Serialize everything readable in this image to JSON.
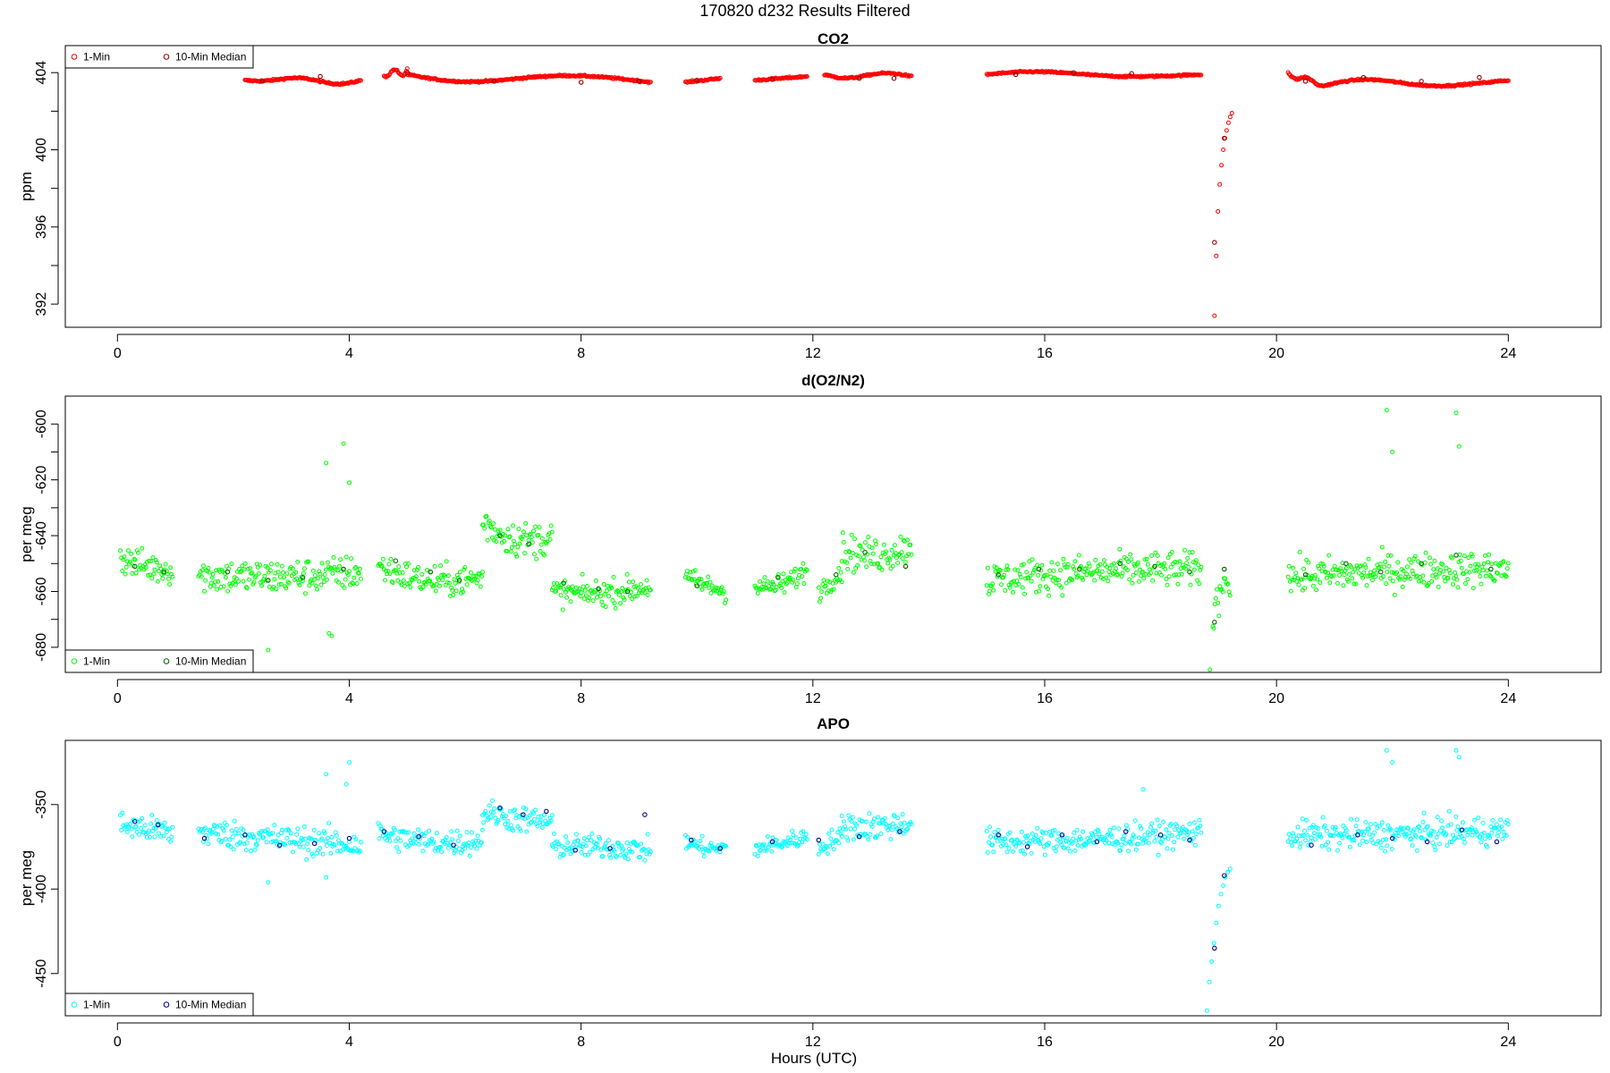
{
  "page": {
    "title": "170820   d232   Results Filtered",
    "x_label": "Hours (UTC)"
  },
  "chart_data": [
    {
      "type": "scatter",
      "title": "CO2",
      "ylabel": "ppm",
      "xlabel": "Hours (UTC)",
      "xlim": [
        -0.9,
        25.6
      ],
      "ylim": [
        390.8,
        405.4
      ],
      "x_ticks": [
        0,
        4,
        8,
        12,
        16,
        20,
        24
      ],
      "y_ticks": [
        392,
        396,
        400,
        404
      ],
      "legend_position": "top-left",
      "grid": false,
      "series": [
        {
          "name": "1-Min",
          "color": "#ff0000",
          "role": "1min",
          "segments": [
            [
              2.2,
              4.2,
              403.6,
              403.6,
              403.75,
              403.25
            ],
            [
              4.6,
              5.0,
              403.8,
              404.2,
              404.25,
              403.5
            ],
            [
              5.0,
              9.2,
              403.9,
              403.5,
              403.3,
              403.55
            ],
            [
              9.8,
              10.4,
              403.5,
              403.7,
              403.6,
              403.6
            ],
            [
              11.0,
              11.9,
              403.6,
              403.8,
              403.7,
              403.7
            ],
            [
              12.2,
              13.7,
              403.9,
              403.8,
              403.6,
              403.8
            ],
            [
              15.0,
              18.7,
              403.9,
              403.9,
              404.1,
              404.0
            ],
            [
              20.2,
              20.8,
              404.0,
              403.3,
              403.5,
              403.3
            ],
            [
              20.8,
              24.0,
              403.3,
              403.6,
              403.8,
              403.7
            ]
          ],
          "spike": {
            "x": [
              18.93,
              18.96,
              18.99,
              19.02,
              19.05,
              19.08,
              19.11,
              19.14,
              19.17,
              19.2,
              19.23
            ],
            "y": [
              391.4,
              394.5,
              396.8,
              398.2,
              399.2,
              400.0,
              400.6,
              401.0,
              401.4,
              401.7,
              401.9
            ]
          }
        },
        {
          "name": "10-Min Median",
          "color": "#8b0000",
          "role": "median",
          "x": [
            2.5,
            3.5,
            5.0,
            6.5,
            8.0,
            9.0,
            10.0,
            11.3,
            12.8,
            13.4,
            15.5,
            16.5,
            17.5,
            18.93,
            19.1,
            20.5,
            21.5,
            22.5,
            23.5
          ],
          "y": [
            403.55,
            403.8,
            404.0,
            403.55,
            403.5,
            403.55,
            403.6,
            403.65,
            403.7,
            403.7,
            403.9,
            404.0,
            403.95,
            395.2,
            400.6,
            403.55,
            403.75,
            403.55,
            403.75
          ]
        }
      ]
    },
    {
      "type": "scatter",
      "title": "d(O2/N2)",
      "ylabel": "per meg",
      "xlabel": "Hours (UTC)",
      "xlim": [
        -0.9,
        25.6
      ],
      "ylim": [
        -689,
        -590
      ],
      "x_ticks": [
        0,
        4,
        8,
        12,
        16,
        20,
        24
      ],
      "y_ticks": [
        -680,
        -660,
        -640,
        -620,
        -600
      ],
      "legend_position": "bottom-left",
      "grid": false,
      "series": [
        {
          "name": "1-Min",
          "color": "#00ff00",
          "role": "1min",
          "segments": [
            [
              0.05,
              0.95,
              -648,
              -652,
              -652,
              7
            ],
            [
              1.4,
              4.2,
              -654,
              -653,
              -656,
              8
            ],
            [
              4.5,
              6.3,
              -651,
              -655,
              -659,
              7
            ],
            [
              6.3,
              7.5,
              -635,
              -640,
              -645,
              8
            ],
            [
              7.5,
              9.2,
              -660,
              -658,
              -662,
              6
            ],
            [
              9.8,
              10.5,
              -655,
              -660,
              -658,
              5
            ],
            [
              11.0,
              11.9,
              -658,
              -652,
              -660,
              5
            ],
            [
              12.1,
              12.5,
              -660,
              -653,
              -656,
              5
            ],
            [
              12.5,
              13.7,
              -645,
              -643,
              -650,
              8
            ],
            [
              15.0,
              18.7,
              -656,
              -652,
              -652,
              8
            ],
            [
              18.9,
              19.2,
              -672,
              -656,
              -652,
              8
            ],
            [
              20.2,
              24.0,
              -655,
              -652,
              -652,
              8
            ]
          ],
          "outliers": {
            "x": [
              3.9,
              4.0,
              3.6,
              3.7,
              21.9,
              22.0,
              23.1,
              23.15,
              2.6,
              3.65,
              18.85
            ],
            "y": [
              -607,
              -621,
              -614,
              -676,
              -595,
              -610,
              -596,
              -608,
              -681,
              -675,
              -688
            ]
          }
        },
        {
          "name": "10-Min Median",
          "color": "#006400",
          "role": "median",
          "x": [
            0.3,
            0.8,
            1.9,
            2.6,
            3.2,
            3.9,
            4.8,
            5.4,
            5.9,
            6.6,
            7.1,
            7.7,
            8.3,
            8.8,
            10.0,
            11.4,
            12.4,
            12.9,
            13.6,
            15.2,
            15.9,
            16.6,
            17.3,
            17.9,
            18.5,
            18.93,
            19.1,
            20.5,
            21.2,
            21.8,
            22.5,
            23.1,
            23.7
          ],
          "y": [
            -651,
            -653,
            -653,
            -656,
            -655,
            -652,
            -649,
            -653,
            -656,
            -640,
            -643,
            -657,
            -659,
            -660,
            -658,
            -655,
            -654,
            -646,
            -651,
            -654,
            -652,
            -652,
            -650,
            -651,
            -653,
            -671,
            -652,
            -654,
            -650,
            -653,
            -650,
            -647,
            -652
          ]
        }
      ]
    },
    {
      "type": "scatter",
      "title": "APO",
      "ylabel": "per meg",
      "xlabel": "Hours (UTC)",
      "xlim": [
        -0.9,
        25.6
      ],
      "ylim": [
        -475,
        -312
      ],
      "x_ticks": [
        0,
        4,
        8,
        12,
        16,
        20,
        24
      ],
      "y_ticks": [
        -450,
        -400,
        -350
      ],
      "legend_position": "bottom-left",
      "grid": false,
      "series": [
        {
          "name": "1-Min",
          "color": "#00ffff",
          "role": "1min",
          "segments": [
            [
              0.05,
              0.95,
              -362,
              -367,
              -364,
              10
            ],
            [
              1.4,
              4.2,
              -366,
              -374,
              -371,
              11
            ],
            [
              4.5,
              6.3,
              -367,
              -371,
              -375,
              10
            ],
            [
              6.3,
              7.5,
              -354,
              -360,
              -360,
              10
            ],
            [
              7.5,
              9.2,
              -375,
              -377,
              -374,
              9
            ],
            [
              9.8,
              10.5,
              -372,
              -376,
              -377,
              7
            ],
            [
              11.0,
              11.9,
              -376,
              -369,
              -373,
              7
            ],
            [
              12.1,
              12.5,
              -376,
              -370,
              -370,
              8
            ],
            [
              12.5,
              13.7,
              -362,
              -360,
              -365,
              11
            ],
            [
              15.0,
              18.7,
              -372,
              -366,
              -372,
              10
            ]
          ],
          "spike": {
            "x": [
              18.8,
              18.84,
              18.88,
              18.92,
              18.96,
              19.0,
              19.04,
              19.08,
              19.12,
              19.16,
              19.2
            ],
            "y": [
              -472,
              -455,
              -443,
              -432,
              -420,
              -410,
              -403,
              -398,
              -393,
              -390,
              -388
            ]
          },
          "segments_b": [
            [
              20.2,
              24.0,
              -368,
              -365,
              -369,
              11
            ]
          ],
          "outliers": {
            "x": [
              3.6,
              3.95,
              4.0,
              21.9,
              22.0,
              23.1,
              23.15,
              2.6,
              3.6,
              17.7
            ],
            "y": [
              -332,
              -338,
              -325,
              -318,
              -325,
              -318,
              -322,
              -396,
              -393,
              -341
            ]
          }
        },
        {
          "name": "10-Min Median",
          "color": "#00008b",
          "role": "median",
          "x": [
            0.3,
            0.7,
            1.5,
            2.2,
            2.8,
            3.4,
            4.0,
            4.6,
            5.2,
            5.8,
            6.6,
            7.0,
            7.4,
            7.9,
            8.5,
            9.1,
            9.9,
            10.4,
            11.3,
            12.1,
            12.8,
            13.5,
            15.2,
            15.7,
            16.3,
            16.9,
            17.4,
            18.0,
            18.5,
            18.93,
            19.1,
            20.6,
            21.4,
            22.0,
            22.6,
            23.2,
            23.8
          ],
          "y": [
            -360,
            -362,
            -370,
            -368,
            -374,
            -373,
            -370,
            -366,
            -369,
            -374,
            -352,
            -356,
            -354,
            -377,
            -376,
            -356,
            -371,
            -376,
            -372,
            -371,
            -369,
            -366,
            -368,
            -375,
            -368,
            -372,
            -366,
            -368,
            -371,
            -435,
            -392,
            -374,
            -368,
            -370,
            -372,
            -365,
            -372
          ]
        }
      ]
    }
  ]
}
